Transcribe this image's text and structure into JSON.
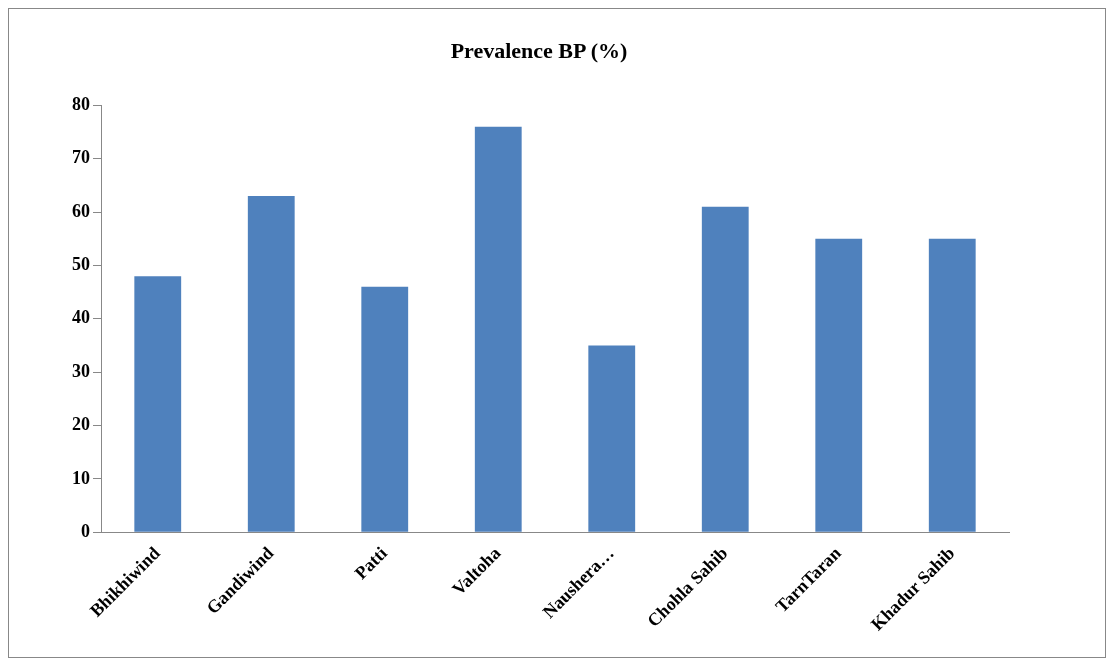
{
  "chart_data": {
    "type": "bar",
    "title": "Prevalence BP (%)",
    "categories": [
      "Bhikhiwind",
      "Gandiwind",
      "Patti",
      "Valtoha",
      "Naushera…",
      "Chohla Sahib",
      "TarnTaran",
      "Khadur Sahib"
    ],
    "values": [
      48,
      63,
      46,
      76,
      35,
      61,
      55,
      55
    ],
    "color": "#4f81bd",
    "ylim": [
      0,
      80
    ],
    "yticks": [
      0,
      10,
      20,
      30,
      40,
      50,
      60,
      70,
      80
    ],
    "grid": false,
    "legend": false
  }
}
